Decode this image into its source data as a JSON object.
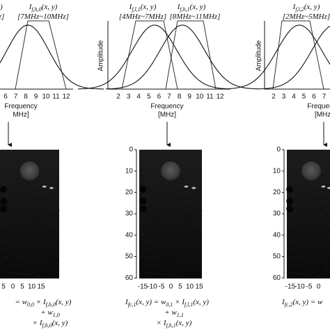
{
  "panels": [
    {
      "top_labels": [
        {
          "text": [
            {
              "t": "z]"
            }
          ],
          "x": 2,
          "y": 24
        },
        {
          "text": [
            {
              "t": ")"
            }
          ],
          "x": 2,
          "y": 10
        },
        {
          "text": [
            {
              "t": "I"
            },
            {
              "s": "f,h,0"
            },
            {
              "t": "(x, y)"
            }
          ],
          "x": 62,
          "y": 10
        },
        {
          "text": [
            {
              "t": "[7MHz~10MHz]"
            }
          ],
          "x": 62,
          "y": 24
        }
      ],
      "freq_ticks": [
        "6",
        "7",
        "8",
        "9",
        "10",
        "11",
        "12"
      ],
      "freq_label": "Frequency",
      "freq_unit": "MHz]",
      "depth_ticks": [],
      "lateral_ticks": [
        "5",
        "0",
        "5",
        "10",
        "15"
      ],
      "formula": [
        [
          {
            "t": "= w"
          },
          {
            "s": "0,0"
          },
          {
            "t": " × I"
          },
          {
            "s": "f,h,0"
          },
          {
            "t": "(x, y)"
          }
        ],
        [
          {
            "t": "+ w"
          },
          {
            "s": "1,0"
          }
        ],
        [
          {
            "t": "× I"
          },
          {
            "s": "f,h,0"
          },
          {
            "t": "(x, y)"
          }
        ]
      ]
    },
    {
      "amplitude_label": "Amplitude",
      "top_labels": [
        {
          "text": [
            {
              "t": "I"
            },
            {
              "s": "f,l,1"
            },
            {
              "t": "(x, y)"
            }
          ],
          "x": 205,
          "y": 10
        },
        {
          "text": [
            {
              "t": "[4MHz~7MHz]"
            }
          ],
          "x": 205,
          "y": 24
        },
        {
          "text": [
            {
              "t": "I"
            },
            {
              "s": "f,h,1"
            },
            {
              "t": "(x, y)"
            }
          ],
          "x": 275,
          "y": 10
        },
        {
          "text": [
            {
              "t": "[8MHz~11MHz]"
            }
          ],
          "x": 280,
          "y": 24
        }
      ],
      "freq_ticks": [
        "2",
        "3",
        "4",
        "5",
        "6",
        "7",
        "8",
        "9",
        "10",
        "11",
        "12"
      ],
      "freq_label": "Frequency",
      "freq_unit": "[MHz]",
      "depth_ticks": [
        "0",
        "10",
        "20",
        "30",
        "40",
        "50",
        "60"
      ],
      "lateral_ticks": [
        "-15",
        "-10",
        "-5",
        "0",
        "5",
        "10",
        "15"
      ],
      "formula": [
        [
          {
            "t": "I"
          },
          {
            "s": "fc,1"
          },
          {
            "t": "(x, y) = w"
          },
          {
            "s": "0,1"
          },
          {
            "t": " × I"
          },
          {
            "s": "f,l,1"
          },
          {
            "t": "(x, y)"
          }
        ],
        [
          {
            "t": "+ w"
          },
          {
            "s": "1,1"
          }
        ],
        [
          {
            "t": "× I"
          },
          {
            "s": "f,h,1"
          },
          {
            "t": "(x, y)"
          }
        ]
      ]
    },
    {
      "amplitude_label": "Amplitude",
      "top_labels": [
        {
          "text": [
            {
              "t": "I"
            },
            {
              "s": "f,l,2"
            },
            {
              "t": "(x, y)"
            }
          ],
          "x": 440,
          "y": 10
        },
        {
          "text": [
            {
              "t": "[2MHz~5MHz]"
            }
          ],
          "x": 440,
          "y": 24
        }
      ],
      "freq_ticks": [
        "2",
        "3",
        "4",
        "5",
        "6",
        "7"
      ],
      "freq_label": "Frequency",
      "freq_unit": "[MHz]",
      "depth_ticks": [
        "0",
        "10",
        "20",
        "30",
        "40",
        "50",
        "60"
      ],
      "lateral_ticks": [
        "-15",
        "-10",
        "-5",
        "0"
      ],
      "formula": [
        [
          {
            "t": "I"
          },
          {
            "s": "fc,2"
          },
          {
            "t": "(x, y) = w"
          }
        ]
      ]
    }
  ]
}
